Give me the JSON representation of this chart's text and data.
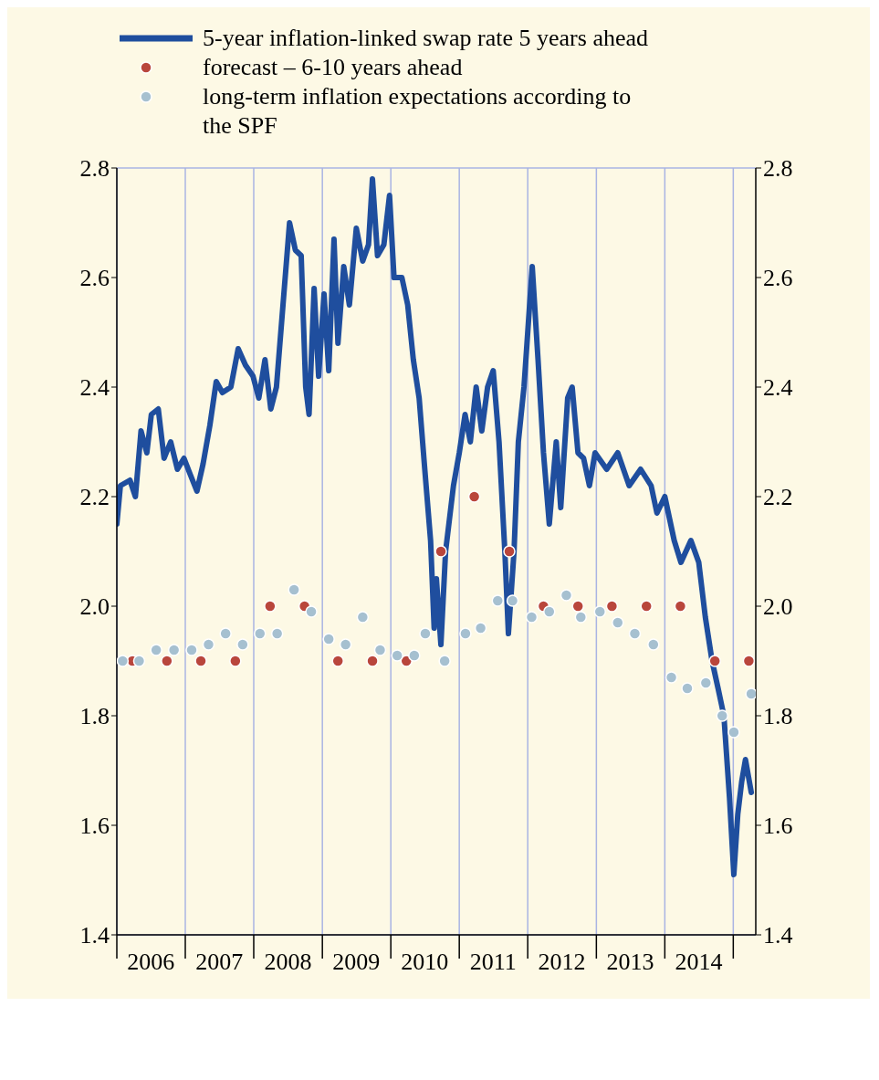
{
  "chart_data": {
    "type": "line",
    "legend": "top",
    "grid": true,
    "xlim": [
      "2006-01",
      "2015-05"
    ],
    "xticks": [
      {
        "value": "2006-01",
        "label": null
      },
      {
        "value": "2006-07",
        "label": "2006"
      },
      {
        "value": "2007-01",
        "label": null
      },
      {
        "value": "2007-07",
        "label": "2007"
      },
      {
        "value": "2008-01",
        "label": null
      },
      {
        "value": "2008-07",
        "label": "2008"
      },
      {
        "value": "2009-01",
        "label": null
      },
      {
        "value": "2009-07",
        "label": "2009"
      },
      {
        "value": "2010-01",
        "label": null
      },
      {
        "value": "2010-07",
        "label": "2010"
      },
      {
        "value": "2011-01",
        "label": null
      },
      {
        "value": "2011-07",
        "label": "2011"
      },
      {
        "value": "2012-01",
        "label": null
      },
      {
        "value": "2012-07",
        "label": "2012"
      },
      {
        "value": "2013-01",
        "label": null
      },
      {
        "value": "2013-07",
        "label": "2013"
      },
      {
        "value": "2014-01",
        "label": null
      },
      {
        "value": "2014-07",
        "label": "2014"
      },
      {
        "value": "2015-01",
        "label": null
      }
    ],
    "ylim": [
      1.4,
      2.8
    ],
    "yticks": [
      1.4,
      1.6,
      1.8,
      {
        "value": 2,
        "label": "2.0"
      },
      2.2,
      2.4,
      2.6,
      2.8
    ],
    "y2lim": [
      1.4,
      2.8
    ],
    "y2ticks": [
      1.4,
      1.6,
      1.8,
      {
        "value": 2,
        "label": "2.0"
      },
      2.2,
      2.4,
      2.6,
      2.8
    ],
    "series": [
      {
        "name": "5-year inflation-linked swap rate 5 years ahead",
        "color": "#1f4e9e",
        "line_style": "solid",
        "marker": "none",
        "x": [
          "2006-01",
          "2006-01-20",
          "2006-03-12",
          "2006-04-10",
          "2006-05-10",
          "2006-06-10",
          "2006-07-04",
          "2006-08-10",
          "2006-09-10",
          "2006-10-15",
          "2006-11-20",
          "2006-12-25",
          "2007-01-28",
          "2007-03-04",
          "2007-04-06",
          "2007-05-12",
          "2007-06-15",
          "2007-07-18",
          "2007-09-01",
          "2007-10-10",
          "2007-11-18",
          "2007-12-28",
          "2008-01-28",
          "2008-03-01",
          "2008-04-01",
          "2008-05-01",
          "2008-06-05",
          "2008-07-10",
          "2008-08-10",
          "2008-09-10",
          "2008-10-04",
          "2008-10-22",
          "2008-11-18",
          "2008-12-12",
          "2009-01-10",
          "2009-02-04",
          "2009-03-04",
          "2009-03-25",
          "2009-04-25",
          "2009-05-25",
          "2009-07-01",
          "2009-08-04",
          "2009-09-04",
          "2009-09-25",
          "2009-10-22",
          "2009-11-25",
          "2009-12-25",
          "2010-01-18",
          "2010-03",
          "2010-04",
          "2010-05",
          "2010-06",
          "2010-07",
          "2010-08",
          "2010-08-20",
          "2010-09",
          "2010-09-25",
          "2010-10-20",
          "2010-12",
          "2011-01",
          "2011-02",
          "2011-03",
          "2011-04",
          "2011-05",
          "2011-06",
          "2011-07",
          "2011-08",
          "2011-09",
          "2011-09-20",
          "2011-10-20",
          "2011-11-12",
          "2011-12-12",
          "2012-01-25",
          "2012-02-25",
          "2012-03-25",
          "2012-04-25",
          "2012-06",
          "2012-06-25",
          "2012-08",
          "2012-08-25",
          "2012-09-25",
          "2012-10-25",
          "2012-11-25",
          "2012-12-25",
          "2013-02-25",
          "2013-04-25",
          "2013-06-25",
          "2013-08-25",
          "2013-10-20",
          "2013-11-20",
          "2014-01",
          "2014-02-20",
          "2014-03-28",
          "2014-05-20",
          "2014-07",
          "2014-08-05",
          "2014-09-10",
          "2014-10-12",
          "2014-11-12",
          "2014-12-12",
          "2015-01-04",
          "2015-01-25",
          "2015-02-15",
          "2015-03-07",
          "2015-04-07"
        ],
        "values": [
          2.15,
          2.22,
          2.23,
          2.2,
          2.32,
          2.28,
          2.35,
          2.36,
          2.27,
          2.3,
          2.25,
          2.27,
          2.24,
          2.21,
          2.26,
          2.33,
          2.41,
          2.39,
          2.4,
          2.47,
          2.44,
          2.42,
          2.38,
          2.45,
          2.36,
          2.4,
          2.55,
          2.7,
          2.65,
          2.64,
          2.4,
          2.35,
          2.58,
          2.42,
          2.57,
          2.43,
          2.67,
          2.48,
          2.62,
          2.55,
          2.69,
          2.63,
          2.66,
          2.78,
          2.64,
          2.66,
          2.75,
          2.6,
          2.6,
          2.55,
          2.45,
          2.38,
          2.25,
          2.12,
          1.96,
          2.05,
          1.93,
          2.1,
          2.22,
          2.28,
          2.35,
          2.3,
          2.4,
          2.32,
          2.4,
          2.43,
          2.3,
          2.1,
          1.95,
          2.1,
          2.3,
          2.4,
          2.62,
          2.45,
          2.28,
          2.15,
          2.3,
          2.18,
          2.38,
          2.4,
          2.28,
          2.27,
          2.22,
          2.28,
          2.25,
          2.28,
          2.22,
          2.25,
          2.22,
          2.17,
          2.2,
          2.12,
          2.08,
          2.12,
          2.08,
          1.98,
          1.9,
          1.85,
          1.8,
          1.65,
          1.51,
          1.62,
          1.68,
          1.72,
          1.66
        ]
      },
      {
        "name": "forecast – 6-10 years ahead",
        "type": "scatter",
        "color": "#b9463c",
        "marker": "circle",
        "x": [
          "2006-03-25",
          "2006-09-25",
          "2007-03-25",
          "2007-09-25",
          "2008-03-28",
          "2008-09-28",
          "2009-03-25",
          "2009-09-25",
          "2010-03-25",
          "2010-09-25",
          "2011-03-22",
          "2011-09-25",
          "2012-03-25",
          "2012-09-25",
          "2013-03-25",
          "2013-09-25",
          "2014-03-25",
          "2014-09-25",
          "2015-03-25"
        ],
        "values": [
          1.9,
          1.9,
          1.9,
          1.9,
          2.0,
          2.0,
          1.9,
          1.9,
          1.9,
          2.1,
          2.2,
          2.1,
          2.0,
          2.0,
          2.0,
          2.0,
          2.0,
          1.9,
          1.9
        ]
      },
      {
        "name": "long-term inflation expectations according to the SPF",
        "type": "scatter",
        "color": "#a6c0d0",
        "marker": "circle",
        "x": [
          "2006-02-01",
          "2006-04-30",
          "2006-07-30",
          "2006-11-02",
          "2007-02-04",
          "2007-05-05",
          "2007-08-04",
          "2007-11-03",
          "2008-02-03",
          "2008-05-05",
          "2008-08-03",
          "2008-11-03",
          "2009-02-04",
          "2009-05-05",
          "2009-08-04",
          "2009-11-05",
          "2010-02-04",
          "2010-05-06",
          "2010-07-04",
          "2010-10-15",
          "2011-02-03",
          "2011-04-25",
          "2011-07-25",
          "2011-10-12",
          "2012-01-22",
          "2012-04-25",
          "2012-07-25",
          "2012-10-10",
          "2013-01-20",
          "2013-04-25",
          "2013-07-25",
          "2013-11-01",
          "2014-02-05",
          "2014-05-01",
          "2014-08-08",
          "2014-11-03",
          "2015-01-04",
          "2015-04-07"
        ],
        "values": [
          1.9,
          1.9,
          1.92,
          1.92,
          1.92,
          1.93,
          1.95,
          1.93,
          1.95,
          1.95,
          2.03,
          1.99,
          1.94,
          1.93,
          1.98,
          1.92,
          1.91,
          1.91,
          1.95,
          1.9,
          1.95,
          1.96,
          2.01,
          2.01,
          1.98,
          1.99,
          2.02,
          1.98,
          1.99,
          1.97,
          1.95,
          1.93,
          1.87,
          1.85,
          1.86,
          1.8,
          1.77,
          1.84
        ]
      }
    ]
  }
}
